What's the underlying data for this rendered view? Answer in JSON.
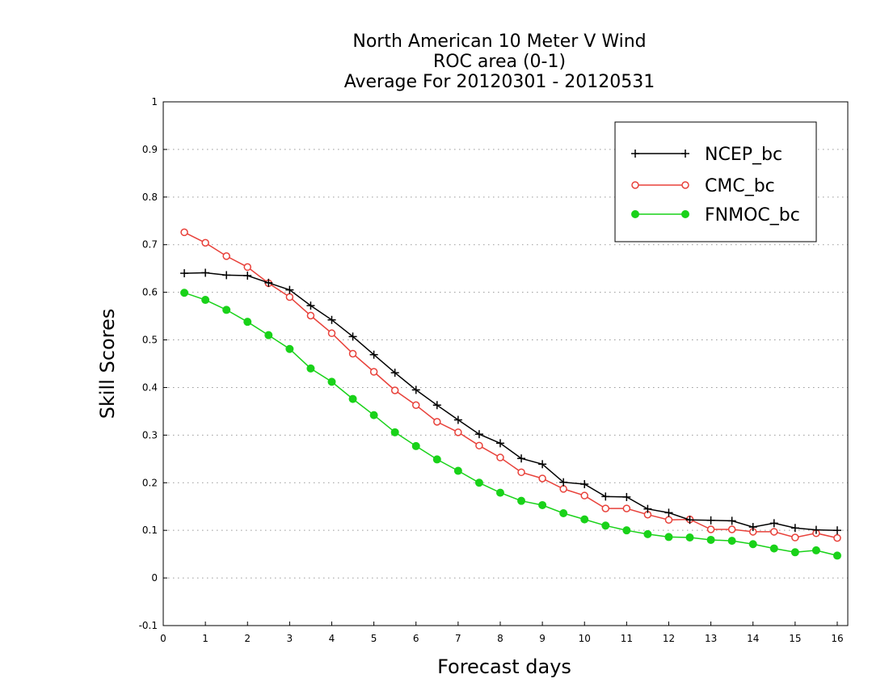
{
  "chart_data": {
    "type": "line",
    "title": [
      "North American 10 Meter V Wind",
      "ROC area (0-1)",
      "Average For 20120301 - 20120531"
    ],
    "xlabel": "Forecast days",
    "ylabel": "Skill Scores",
    "xlim": [
      0,
      16.25
    ],
    "ylim": [
      -0.1,
      1
    ],
    "xticks": [
      0,
      1,
      2,
      3,
      4,
      5,
      6,
      7,
      8,
      9,
      10,
      11,
      12,
      13,
      14,
      15,
      16
    ],
    "yticks": [
      -0.1,
      0,
      0.1,
      0.2,
      0.3,
      0.4,
      0.5,
      0.6,
      0.7,
      0.8,
      0.9,
      1
    ],
    "ytick_labels": [
      "-0.1",
      "0",
      "0.1",
      "0.2",
      "0.3",
      "0.4",
      "0.5",
      "0.6",
      "0.7",
      "0.8",
      "0.9",
      "1"
    ],
    "grid": "horizontal-dotted",
    "legend_position": "top-right",
    "x": [
      0.5,
      1,
      1.5,
      2,
      2.5,
      3,
      3.5,
      4,
      4.5,
      5,
      5.5,
      6,
      6.5,
      7,
      7.5,
      8,
      8.5,
      9,
      9.5,
      10,
      10.5,
      11,
      11.5,
      12,
      12.5,
      13,
      13.5,
      14,
      14.5,
      15,
      15.5,
      16
    ],
    "series": [
      {
        "name": "NCEP_bc",
        "color": "#000000",
        "marker": "plus",
        "values": [
          0.64,
          0.641,
          0.636,
          0.635,
          0.62,
          0.605,
          0.572,
          0.542,
          0.507,
          0.469,
          0.431,
          0.395,
          0.363,
          0.332,
          0.302,
          0.283,
          0.251,
          0.239,
          0.201,
          0.197,
          0.171,
          0.17,
          0.145,
          0.137,
          0.122,
          0.121,
          0.12,
          0.107,
          0.115,
          0.105,
          0.101,
          0.1
        ]
      },
      {
        "name": "CMC_bc",
        "color": "#e8413a",
        "marker": "open-circle",
        "values": [
          0.726,
          0.704,
          0.676,
          0.653,
          0.619,
          0.59,
          0.551,
          0.514,
          0.471,
          0.433,
          0.394,
          0.363,
          0.328,
          0.306,
          0.278,
          0.253,
          0.222,
          0.209,
          0.187,
          0.173,
          0.146,
          0.146,
          0.133,
          0.122,
          0.123,
          0.102,
          0.102,
          0.097,
          0.097,
          0.085,
          0.094,
          0.084
        ]
      },
      {
        "name": "FNMOC_bc",
        "color": "#19d219",
        "marker": "filled-circle",
        "values": [
          0.599,
          0.584,
          0.563,
          0.538,
          0.51,
          0.481,
          0.44,
          0.412,
          0.376,
          0.342,
          0.306,
          0.277,
          0.249,
          0.225,
          0.2,
          0.179,
          0.162,
          0.153,
          0.136,
          0.123,
          0.11,
          0.1,
          0.092,
          0.086,
          0.085,
          0.08,
          0.078,
          0.071,
          0.062,
          0.054,
          0.058,
          0.047
        ]
      }
    ]
  }
}
